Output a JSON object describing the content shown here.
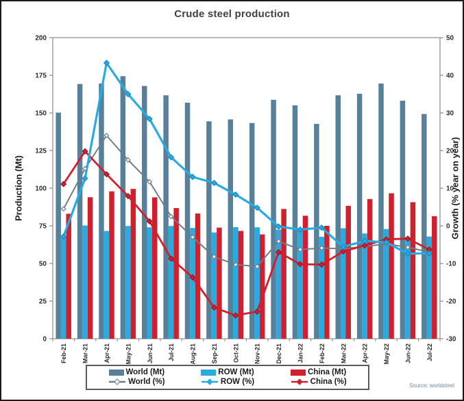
{
  "chart_data": {
    "type": "combo-bar-line",
    "title": "Crude steel production",
    "source": "Source: worldsteel",
    "legend_position": "bottom",
    "grid": false,
    "categories": [
      "Feb-21",
      "Mar-21",
      "Apr-21",
      "May-21",
      "Jun-21",
      "Jul-21",
      "Aug-21",
      "Sep-21",
      "Oct-21",
      "Nov-21",
      "Dec-21",
      "Jan-22",
      "Feb-22",
      "Mar-22",
      "Apr-22",
      "May-22",
      "Jun-22",
      "Jul-22"
    ],
    "left_axis": {
      "label": "Production (Mt)",
      "min": 0,
      "max": 200,
      "ticks": [
        0,
        25,
        50,
        75,
        100,
        125,
        150,
        175,
        200
      ]
    },
    "right_axis": {
      "label": "Growth (% year on year)",
      "min": -30,
      "max": 50,
      "ticks": [
        -30,
        -20,
        -10,
        0,
        10,
        20,
        30,
        40,
        50
      ]
    },
    "bar_series": [
      {
        "name": "World (Mt)",
        "color": "#57809b",
        "values": [
          150.2,
          169.2,
          169.5,
          174.4,
          167.9,
          161.7,
          156.8,
          144.4,
          145.7,
          143.3,
          158.7,
          155.0,
          142.7,
          161.7,
          162.7,
          169.5,
          158.1,
          149.3
        ]
      },
      {
        "name": "ROW (Mt)",
        "color": "#29abe2",
        "values": [
          67.2,
          75.2,
          71.6,
          74.9,
          74.0,
          74.9,
          73.6,
          70.6,
          74.1,
          74.0,
          72.5,
          73.3,
          67.7,
          73.4,
          69.9,
          72.9,
          67.4,
          67.9
        ]
      },
      {
        "name": "China (Mt)",
        "color": "#d21f2d",
        "values": [
          83.0,
          94.0,
          97.9,
          99.5,
          93.9,
          86.8,
          83.2,
          73.8,
          71.6,
          69.3,
          86.2,
          81.7,
          75.0,
          88.3,
          92.8,
          96.6,
          90.7,
          81.4
        ]
      }
    ],
    "line_series": [
      {
        "name": "World (%)",
        "color": "#6e7d8a",
        "marker": "open-diamond",
        "values": [
          4.5,
          15.2,
          24.0,
          17.5,
          11.7,
          2.5,
          -3.0,
          -8.2,
          -10.3,
          -10.8,
          -4.1,
          -6.3,
          -5.9,
          -6.1,
          -5.5,
          -4.8,
          -5.7,
          -7.0
        ]
      },
      {
        "name": "ROW (%)",
        "color": "#29abe2",
        "marker": "diamond",
        "values": [
          -2.8,
          12.6,
          43.3,
          35.0,
          28.4,
          18.2,
          13.0,
          11.4,
          8.3,
          4.8,
          -0.2,
          -1.0,
          -0.5,
          -5.6,
          -4.0,
          -4.4,
          -7.4,
          -7.3
        ]
      },
      {
        "name": "China (%)",
        "color": "#d21f2d",
        "marker": "diamond",
        "values": [
          11.1,
          19.8,
          13.7,
          7.9,
          1.2,
          -8.7,
          -13.7,
          -21.7,
          -23.8,
          -22.8,
          -7.0,
          -10.2,
          -10.3,
          -6.8,
          -5.2,
          -3.6,
          -3.4,
          -6.3
        ]
      }
    ]
  }
}
